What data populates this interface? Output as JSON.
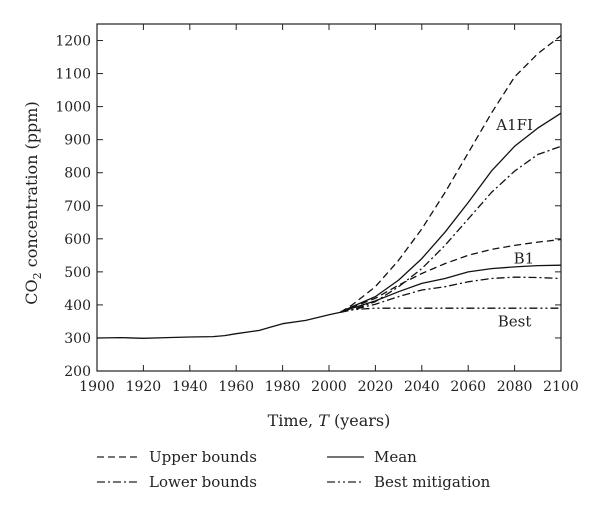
{
  "chart_data": {
    "type": "line",
    "xlabel_prefix": "Time, ",
    "xlabel_var": "T",
    "xlabel_suffix": " (years)",
    "ylabel_main": "CO",
    "ylabel_sub": "2",
    "ylabel_rest": " concentration (ppm)",
    "xlim": [
      1900,
      2100
    ],
    "ylim": [
      200,
      1250
    ],
    "xticks": [
      1900,
      1920,
      1940,
      1960,
      1980,
      2000,
      2020,
      2040,
      2060,
      2080,
      2100
    ],
    "yticks": [
      200,
      300,
      400,
      500,
      600,
      700,
      800,
      900,
      1000,
      1100,
      1200
    ],
    "grid": false,
    "legend_position": "bottom",
    "legend": [
      {
        "label": "Upper bounds",
        "style": "dashed"
      },
      {
        "label": "Mean",
        "style": "solid"
      },
      {
        "label": "Lower bounds",
        "style": "dashdot"
      },
      {
        "label": "Best mitigation",
        "style": "dashdotdot"
      }
    ],
    "annotations": [
      {
        "text": "A1FI",
        "x": 2080,
        "y": 930
      },
      {
        "text": "B1",
        "x": 2084,
        "y": 525
      },
      {
        "text": "Best",
        "x": 2080,
        "y": 335
      }
    ],
    "series": [
      {
        "scenario": "Historical",
        "style": "solid",
        "points": [
          [
            1900,
            300
          ],
          [
            1910,
            301
          ],
          [
            1920,
            299
          ],
          [
            1930,
            301
          ],
          [
            1940,
            303
          ],
          [
            1950,
            304
          ],
          [
            1955,
            307
          ],
          [
            1960,
            313
          ],
          [
            1970,
            323
          ],
          [
            1975,
            333
          ],
          [
            1980,
            343
          ],
          [
            1990,
            353
          ],
          [
            2000,
            370
          ],
          [
            2005,
            378
          ]
        ]
      },
      {
        "scenario": "A1FI",
        "style": "dashed",
        "points": [
          [
            2005,
            378
          ],
          [
            2010,
            400
          ],
          [
            2020,
            455
          ],
          [
            2030,
            535
          ],
          [
            2040,
            630
          ],
          [
            2050,
            740
          ],
          [
            2060,
            860
          ],
          [
            2070,
            980
          ],
          [
            2080,
            1090
          ],
          [
            2090,
            1160
          ],
          [
            2100,
            1215
          ]
        ]
      },
      {
        "scenario": "A1FI",
        "style": "solid",
        "points": [
          [
            2005,
            378
          ],
          [
            2010,
            395
          ],
          [
            2020,
            425
          ],
          [
            2030,
            475
          ],
          [
            2040,
            540
          ],
          [
            2050,
            620
          ],
          [
            2060,
            710
          ],
          [
            2070,
            805
          ],
          [
            2080,
            880
          ],
          [
            2090,
            935
          ],
          [
            2100,
            980
          ]
        ]
      },
      {
        "scenario": "A1FI",
        "style": "dashdot",
        "points": [
          [
            2005,
            378
          ],
          [
            2010,
            385
          ],
          [
            2020,
            410
          ],
          [
            2030,
            455
          ],
          [
            2040,
            510
          ],
          [
            2050,
            580
          ],
          [
            2060,
            660
          ],
          [
            2070,
            740
          ],
          [
            2080,
            805
          ],
          [
            2090,
            855
          ],
          [
            2100,
            880
          ]
        ]
      },
      {
        "scenario": "B1",
        "style": "dashed",
        "points": [
          [
            2005,
            378
          ],
          [
            2010,
            393
          ],
          [
            2020,
            420
          ],
          [
            2030,
            460
          ],
          [
            2040,
            495
          ],
          [
            2050,
            525
          ],
          [
            2060,
            550
          ],
          [
            2070,
            568
          ],
          [
            2080,
            580
          ],
          [
            2090,
            590
          ],
          [
            2100,
            598
          ]
        ]
      },
      {
        "scenario": "B1",
        "style": "solid",
        "points": [
          [
            2005,
            378
          ],
          [
            2010,
            390
          ],
          [
            2020,
            412
          ],
          [
            2030,
            440
          ],
          [
            2040,
            465
          ],
          [
            2050,
            480
          ],
          [
            2060,
            500
          ],
          [
            2070,
            510
          ],
          [
            2080,
            515
          ],
          [
            2090,
            519
          ],
          [
            2100,
            520
          ]
        ]
      },
      {
        "scenario": "B1",
        "style": "dashdot",
        "points": [
          [
            2005,
            378
          ],
          [
            2010,
            385
          ],
          [
            2020,
            402
          ],
          [
            2030,
            425
          ],
          [
            2040,
            445
          ],
          [
            2050,
            455
          ],
          [
            2060,
            470
          ],
          [
            2070,
            480
          ],
          [
            2080,
            484
          ],
          [
            2090,
            483
          ],
          [
            2100,
            480
          ]
        ]
      },
      {
        "scenario": "Best",
        "style": "dashdotdot",
        "points": [
          [
            2005,
            380
          ],
          [
            2010,
            385
          ],
          [
            2015,
            388
          ],
          [
            2020,
            390
          ],
          [
            2040,
            390
          ],
          [
            2060,
            390
          ],
          [
            2080,
            390
          ],
          [
            2100,
            390
          ]
        ]
      }
    ]
  }
}
